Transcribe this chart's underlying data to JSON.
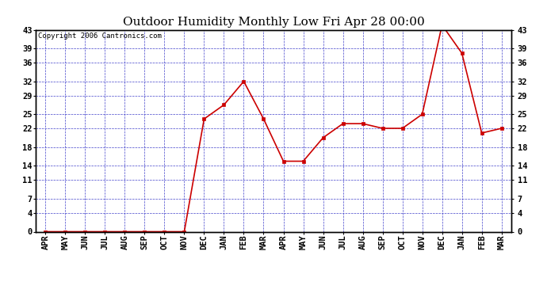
{
  "title": "Outdoor Humidity Monthly Low Fri Apr 28 00:00",
  "copyright": "Copyright 2006 Cantronics.com",
  "x_labels": [
    "APR",
    "MAY",
    "JUN",
    "JUL",
    "AUG",
    "SEP",
    "OCT",
    "NOV",
    "DEC",
    "JAN",
    "FEB",
    "MAR",
    "APR",
    "MAY",
    "JUN",
    "JUL",
    "AUG",
    "SEP",
    "OCT",
    "NOV",
    "DEC",
    "JAN",
    "FEB",
    "MAR"
  ],
  "y_values": [
    0,
    0,
    0,
    0,
    0,
    0,
    0,
    0,
    24,
    27,
    32,
    24,
    15,
    15,
    20,
    23,
    23,
    22,
    22,
    25,
    44,
    38,
    21,
    22
  ],
  "yticks": [
    0,
    4,
    7,
    11,
    14,
    18,
    22,
    25,
    29,
    32,
    36,
    39,
    43
  ],
  "ylim": [
    0,
    43
  ],
  "line_color": "#cc0000",
  "marker_color": "#cc0000",
  "fig_bg_color": "#ffffff",
  "plot_bg_color": "#ffffff",
  "grid_color": "#4444cc",
  "border_color": "#000000",
  "title_fontsize": 11,
  "copyright_fontsize": 6.5,
  "tick_fontsize": 7.5
}
